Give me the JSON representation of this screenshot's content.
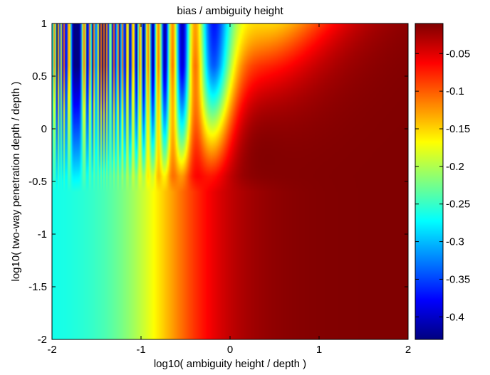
{
  "chart_data": {
    "type": "heatmap",
    "title": "bias / ambiguity height",
    "xlabel": "log10( ambiguity height / depth )",
    "ylabel": "log10( two-way penetration depth / depth )",
    "xlim": [
      -2,
      2
    ],
    "ylim": [
      -2,
      1
    ],
    "x_ticks": [
      -2,
      -1,
      0,
      1,
      2
    ],
    "x_tick_labels": [
      "-2",
      "-1",
      "0",
      "1",
      "2"
    ],
    "y_ticks": [
      -2,
      -1.5,
      -1,
      -0.5,
      0,
      0.5,
      1
    ],
    "y_tick_labels": [
      "-2",
      "-1.5",
      "-1",
      "-0.5",
      "0",
      "0.5",
      "1"
    ],
    "colormap": "jet",
    "clim": [
      -0.43,
      -0.01
    ],
    "colorbar_ticks": [
      -0.05,
      -0.1,
      -0.15,
      -0.2,
      -0.25,
      -0.3,
      -0.35,
      -0.4
    ],
    "colorbar_tick_labels": [
      "-0.05",
      "-0.1",
      "-0.15",
      "-0.2",
      "-0.25",
      "-0.3",
      "-0.35",
      "-0.4"
    ],
    "description_values": {
      "lower_left_plateau": -0.27,
      "right_region": -0.01,
      "oscillation_min": -0.43,
      "oscillation_max": -0.01
    }
  }
}
